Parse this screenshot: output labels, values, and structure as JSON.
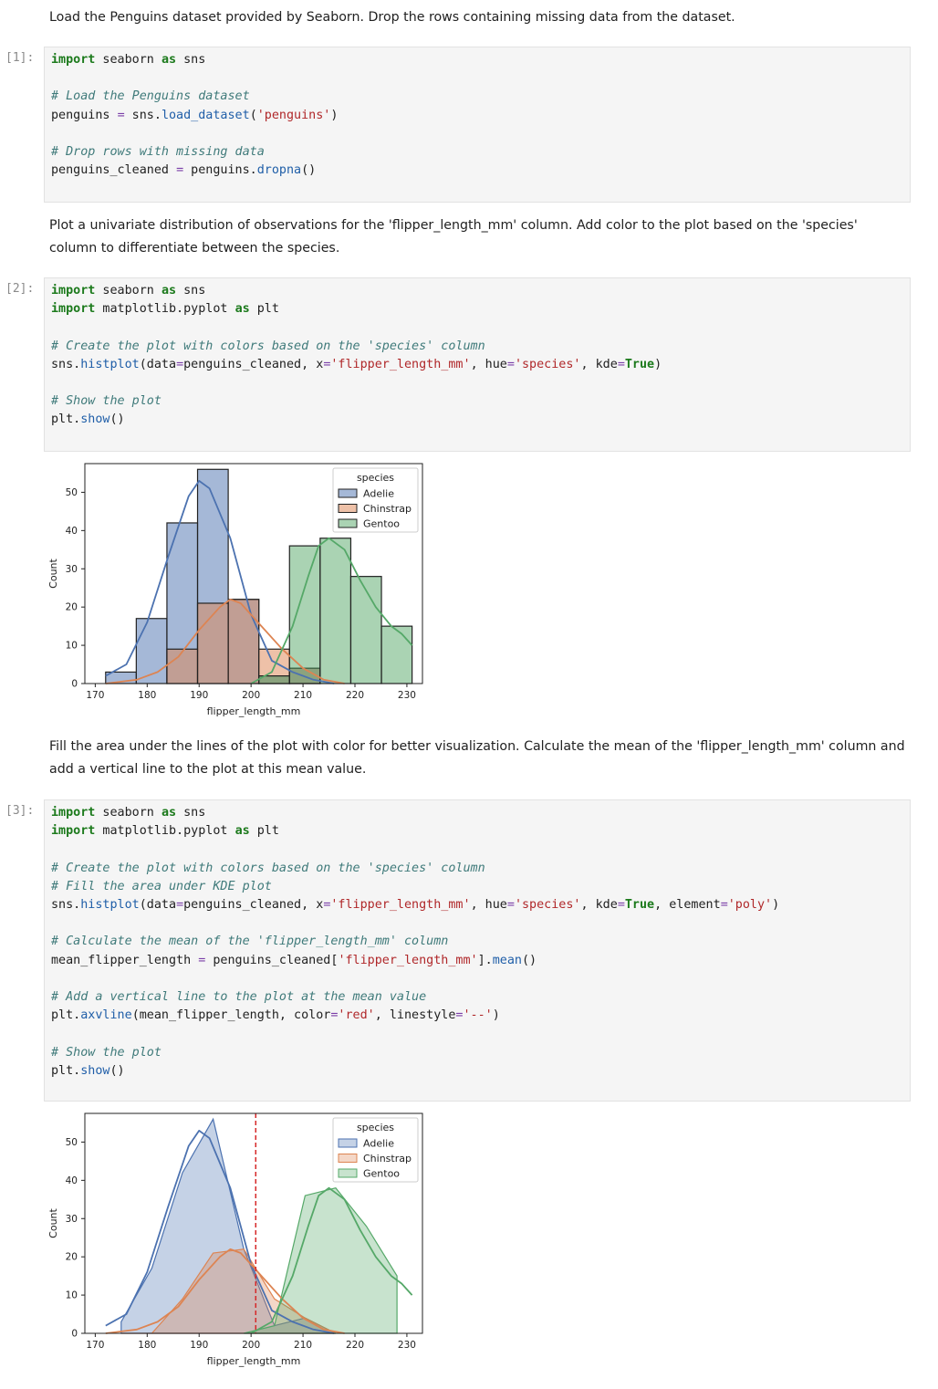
{
  "markdown": {
    "m1": "Load the Penguins dataset provided by Seaborn. Drop the rows containing missing data from the dataset.",
    "m2": "Plot a univariate distribution of observations for the 'flipper_length_mm' column. Add color to the plot based on the 'species' column to differentiate between the species.",
    "m3": "Fill the area under the lines of the plot with color for better visualization. Calculate the mean of the 'flipper_length_mm' column and add a vertical line to the plot at this mean value."
  },
  "cells": [
    {
      "prompt": "[1]:",
      "lines": [
        [
          [
            "import",
            "k"
          ],
          [
            " seaborn ",
            ""
          ],
          [
            "as",
            "k"
          ],
          [
            " sns",
            ""
          ]
        ],
        [],
        [
          [
            "# Load the Penguins dataset",
            "c"
          ]
        ],
        [
          [
            "penguins ",
            ""
          ],
          [
            "=",
            "o"
          ],
          [
            " sns.",
            ""
          ],
          [
            "load_dataset",
            "f"
          ],
          [
            "(",
            ""
          ],
          [
            "'penguins'",
            "s"
          ],
          [
            ")",
            ""
          ]
        ],
        [],
        [
          [
            "# Drop rows with missing data",
            "c"
          ]
        ],
        [
          [
            "penguins_cleaned ",
            ""
          ],
          [
            "=",
            "o"
          ],
          [
            " penguins.",
            ""
          ],
          [
            "dropna",
            "f"
          ],
          [
            "()",
            ""
          ]
        ],
        []
      ]
    },
    {
      "prompt": "[2]:",
      "lines": [
        [
          [
            "import",
            "k"
          ],
          [
            " seaborn ",
            ""
          ],
          [
            "as",
            "k"
          ],
          [
            " sns",
            ""
          ]
        ],
        [
          [
            "import",
            "k"
          ],
          [
            " matplotlib.pyplot ",
            ""
          ],
          [
            "as",
            "k"
          ],
          [
            " plt",
            ""
          ]
        ],
        [],
        [
          [
            "# Create the plot with colors based on the 'species' column",
            "c"
          ]
        ],
        [
          [
            "sns.",
            ""
          ],
          [
            "histplot",
            "f"
          ],
          [
            "(data",
            ""
          ],
          [
            "=",
            "o"
          ],
          [
            "penguins_cleaned, x",
            ""
          ],
          [
            "=",
            "o"
          ],
          [
            "'flipper_length_mm'",
            "s"
          ],
          [
            ", hue",
            ""
          ],
          [
            "=",
            "o"
          ],
          [
            "'species'",
            "s"
          ],
          [
            ", kde",
            ""
          ],
          [
            "=",
            "o"
          ],
          [
            "True",
            "k"
          ],
          [
            ")",
            ""
          ]
        ],
        [],
        [
          [
            "# Show the plot",
            "c"
          ]
        ],
        [
          [
            "plt.",
            ""
          ],
          [
            "show",
            "f"
          ],
          [
            "()",
            ""
          ]
        ],
        []
      ]
    },
    {
      "prompt": "[3]:",
      "lines": [
        [
          [
            "import",
            "k"
          ],
          [
            " seaborn ",
            ""
          ],
          [
            "as",
            "k"
          ],
          [
            " sns",
            ""
          ]
        ],
        [
          [
            "import",
            "k"
          ],
          [
            " matplotlib.pyplot ",
            ""
          ],
          [
            "as",
            "k"
          ],
          [
            " plt",
            ""
          ]
        ],
        [],
        [
          [
            "# Create the plot with colors based on the 'species' column",
            "c"
          ]
        ],
        [
          [
            "# Fill the area under KDE plot",
            "c"
          ]
        ],
        [
          [
            "sns.",
            ""
          ],
          [
            "histplot",
            "f"
          ],
          [
            "(data",
            ""
          ],
          [
            "=",
            "o"
          ],
          [
            "penguins_cleaned, x",
            ""
          ],
          [
            "=",
            "o"
          ],
          [
            "'flipper_length_mm'",
            "s"
          ],
          [
            ", hue",
            ""
          ],
          [
            "=",
            "o"
          ],
          [
            "'species'",
            "s"
          ],
          [
            ", kde",
            ""
          ],
          [
            "=",
            "o"
          ],
          [
            "True",
            "k"
          ],
          [
            ", element",
            ""
          ],
          [
            "=",
            "o"
          ],
          [
            "'poly'",
            "s"
          ],
          [
            ")",
            ""
          ]
        ],
        [],
        [
          [
            "# Calculate the mean of the 'flipper_length_mm' column",
            "c"
          ]
        ],
        [
          [
            "mean_flipper_length ",
            ""
          ],
          [
            "=",
            "o"
          ],
          [
            " penguins_cleaned[",
            ""
          ],
          [
            "'flipper_length_mm'",
            "s"
          ],
          [
            "].",
            ""
          ],
          [
            "mean",
            "f"
          ],
          [
            "()",
            ""
          ]
        ],
        [],
        [
          [
            "# Add a vertical line to the plot at the mean value",
            "c"
          ]
        ],
        [
          [
            "plt.",
            ""
          ],
          [
            "axvline",
            "f"
          ],
          [
            "(mean_flipper_length, color",
            ""
          ],
          [
            "=",
            "o"
          ],
          [
            "'red'",
            "s"
          ],
          [
            ", linestyle",
            ""
          ],
          [
            "=",
            "o"
          ],
          [
            "'--'",
            "s"
          ],
          [
            ")",
            ""
          ]
        ],
        [],
        [
          [
            "# Show the plot",
            "c"
          ]
        ],
        [
          [
            "plt.",
            ""
          ],
          [
            "show",
            "f"
          ],
          [
            "()",
            ""
          ]
        ],
        []
      ]
    }
  ],
  "chart_data": [
    {
      "type": "bar",
      "xlabel": "flipper_length_mm",
      "ylabel": "Count",
      "xlim": [
        168,
        233
      ],
      "ylim": [
        0,
        57.5
      ],
      "xticks": [
        170,
        180,
        190,
        200,
        210,
        220,
        230
      ],
      "yticks": [
        0,
        10,
        20,
        30,
        40,
        50
      ],
      "legend": {
        "title": "species",
        "placement": "top-right",
        "entries": [
          "Adelie",
          "Chinstrap",
          "Gentoo"
        ]
      },
      "colors": {
        "Adelie": "#4c72b0",
        "Chinstrap": "#dd8452",
        "Gentoo": "#55a868"
      },
      "bin_edges": [
        172,
        177.9,
        183.8,
        189.7,
        195.6,
        201.5,
        207.4,
        213.3,
        219.2,
        225.1,
        231
      ],
      "series": [
        {
          "name": "Adelie",
          "values": [
            3,
            17,
            42,
            56,
            22,
            2,
            4,
            0,
            0,
            0
          ],
          "kde": [
            [
              172,
              2
            ],
            [
              176,
              5
            ],
            [
              180,
              16
            ],
            [
              184,
              33
            ],
            [
              188,
              49
            ],
            [
              190,
              53
            ],
            [
              192,
              51
            ],
            [
              196,
              38
            ],
            [
              200,
              18
            ],
            [
              204,
              6
            ],
            [
              208,
              3
            ],
            [
              212,
              1
            ],
            [
              216,
              0
            ]
          ]
        },
        {
          "name": "Chinstrap",
          "values": [
            0,
            0,
            9,
            21,
            22,
            9,
            4,
            0,
            0,
            0
          ],
          "kde": [
            [
              172,
              0
            ],
            [
              178,
              1
            ],
            [
              182,
              3
            ],
            [
              186,
              7
            ],
            [
              190,
              14
            ],
            [
              194,
              20
            ],
            [
              196,
              22
            ],
            [
              198,
              21
            ],
            [
              202,
              15
            ],
            [
              206,
              9
            ],
            [
              210,
              4
            ],
            [
              214,
              1
            ],
            [
              218,
              0
            ]
          ]
        },
        {
          "name": "Gentoo",
          "values": [
            0,
            0,
            0,
            0,
            0,
            2,
            36,
            38,
            28,
            15
          ],
          "kde": [
            [
              200,
              0
            ],
            [
              204,
              3
            ],
            [
              208,
              15
            ],
            [
              211,
              28
            ],
            [
              213,
              36
            ],
            [
              215,
              38
            ],
            [
              218,
              35
            ],
            [
              221,
              27
            ],
            [
              224,
              20
            ],
            [
              227,
              15
            ],
            [
              229,
              13
            ],
            [
              231,
              10
            ]
          ]
        }
      ]
    },
    {
      "type": "area",
      "xlabel": "flipper_length_mm",
      "ylabel": "Count",
      "xlim": [
        168,
        233
      ],
      "ylim": [
        0,
        57.5
      ],
      "xticks": [
        170,
        180,
        190,
        200,
        210,
        220,
        230
      ],
      "yticks": [
        0,
        10,
        20,
        30,
        40,
        50
      ],
      "mean_line": {
        "x": 200.9,
        "color": "red",
        "linestyle": "--"
      },
      "legend": {
        "title": "species",
        "placement": "top-right",
        "entries": [
          "Adelie",
          "Chinstrap",
          "Gentoo"
        ]
      },
      "colors": {
        "Adelie": "#4c72b0",
        "Chinstrap": "#dd8452",
        "Gentoo": "#55a868"
      },
      "series": [
        {
          "name": "Adelie",
          "poly": [
            [
              175,
              3
            ],
            [
              180.9,
              17
            ],
            [
              186.8,
              42
            ],
            [
              192.7,
              56
            ],
            [
              198.6,
              22
            ],
            [
              204.5,
              2
            ],
            [
              210.4,
              4
            ],
            [
              216.3,
              0
            ]
          ],
          "kde": [
            [
              172,
              2
            ],
            [
              176,
              5
            ],
            [
              180,
              16
            ],
            [
              184,
              33
            ],
            [
              188,
              49
            ],
            [
              190,
              53
            ],
            [
              192,
              51
            ],
            [
              196,
              38
            ],
            [
              200,
              18
            ],
            [
              204,
              6
            ],
            [
              208,
              3
            ],
            [
              212,
              1
            ],
            [
              216,
              0
            ]
          ]
        },
        {
          "name": "Chinstrap",
          "poly": [
            [
              175,
              0
            ],
            [
              180.9,
              0
            ],
            [
              186.8,
              9
            ],
            [
              192.7,
              21
            ],
            [
              198.6,
              22
            ],
            [
              204.5,
              9
            ],
            [
              210.4,
              4
            ],
            [
              216.3,
              0
            ]
          ],
          "kde": [
            [
              172,
              0
            ],
            [
              178,
              1
            ],
            [
              182,
              3
            ],
            [
              186,
              7
            ],
            [
              190,
              14
            ],
            [
              194,
              20
            ],
            [
              196,
              22
            ],
            [
              198,
              21
            ],
            [
              202,
              15
            ],
            [
              206,
              9
            ],
            [
              210,
              4
            ],
            [
              214,
              1
            ],
            [
              218,
              0
            ]
          ]
        },
        {
          "name": "Gentoo",
          "poly": [
            [
              198.6,
              0
            ],
            [
              204.5,
              2
            ],
            [
              210.4,
              36
            ],
            [
              216.3,
              38
            ],
            [
              222.2,
              28
            ],
            [
              228.1,
              15
            ],
            [
              228.1,
              0
            ]
          ],
          "kde": [
            [
              200,
              0
            ],
            [
              204,
              3
            ],
            [
              208,
              15
            ],
            [
              211,
              28
            ],
            [
              213,
              36
            ],
            [
              215,
              38
            ],
            [
              218,
              35
            ],
            [
              221,
              27
            ],
            [
              224,
              20
            ],
            [
              227,
              15
            ],
            [
              229,
              13
            ],
            [
              231,
              10
            ]
          ]
        }
      ]
    }
  ]
}
